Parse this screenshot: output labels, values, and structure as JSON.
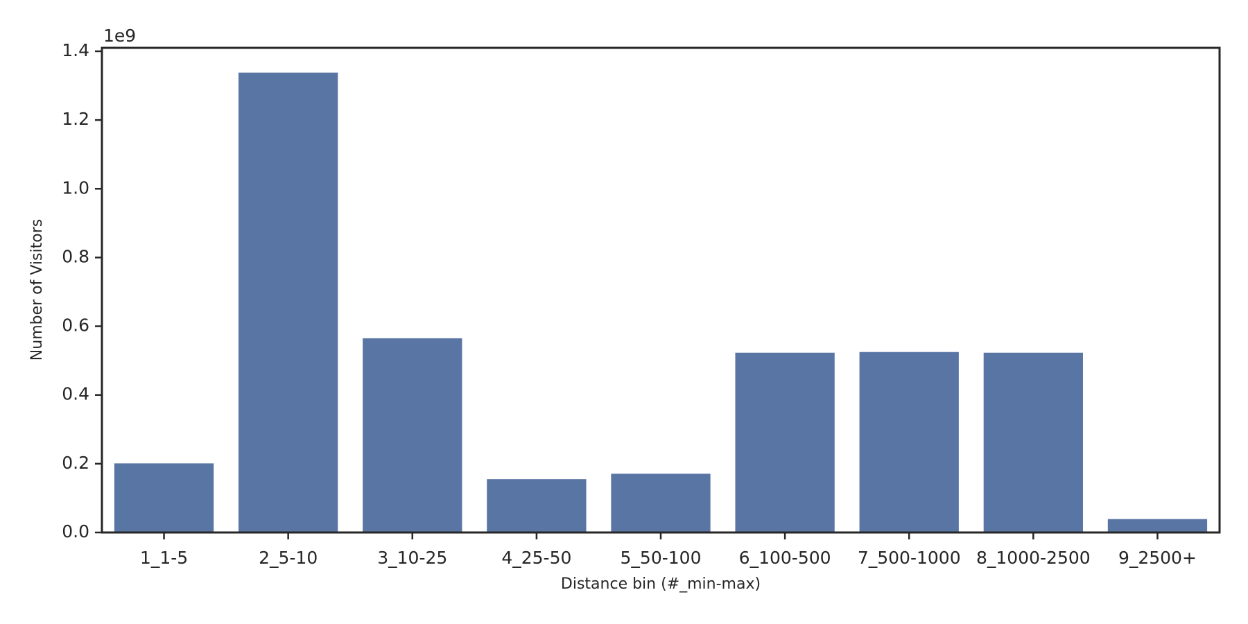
{
  "chart_data": {
    "type": "bar",
    "x_label": "Distance bin (#_min-max)",
    "y_label": "Number of Visitors",
    "y_offset_label": "1e9",
    "categories": [
      "1_1-5",
      "2_5-10",
      "3_10-25",
      "4_25-50",
      "5_50-100",
      "6_100-500",
      "7_500-1000",
      "8_1000-2500",
      "9_2500+"
    ],
    "values": [
      0.201,
      1.338,
      0.565,
      0.155,
      0.171,
      0.523,
      0.525,
      0.523,
      0.039
    ],
    "color": "#5975a4",
    "ylim": [
      0,
      1.41
    ],
    "yticks": [
      {
        "value": 0,
        "label": "0.0"
      },
      0.2,
      0.4,
      0.6,
      0.8,
      {
        "value": 1,
        "label": "1.0"
      },
      1.2,
      1.4
    ],
    "grid": false
  }
}
